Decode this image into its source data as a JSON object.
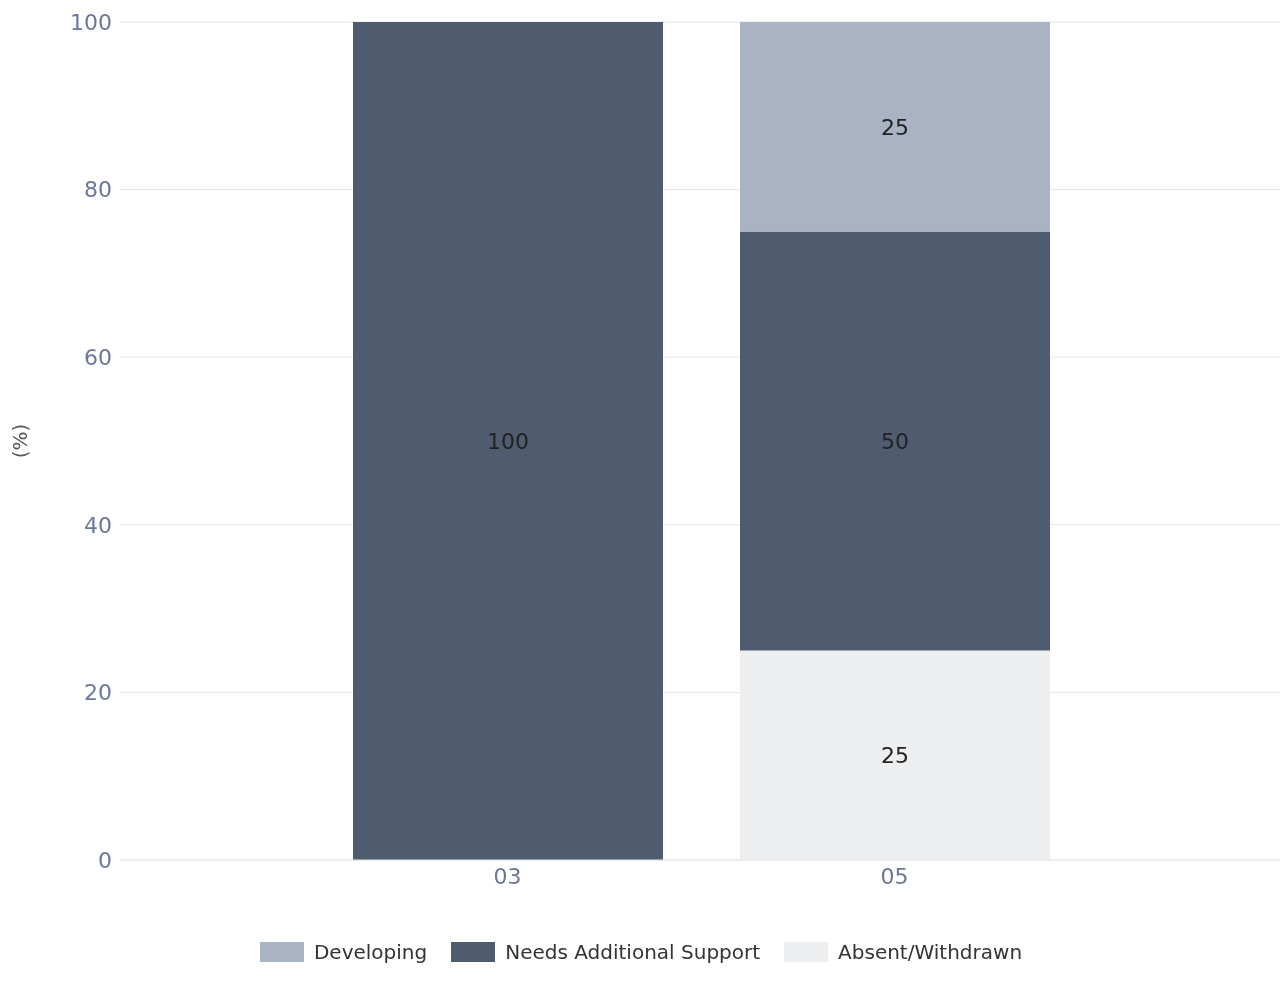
{
  "chart_data": {
    "type": "bar",
    "stacked": true,
    "ylabel": "(%)",
    "categories": [
      "03",
      "05"
    ],
    "series": [
      {
        "name": "Absent/Withdrawn",
        "color": "#eceef0",
        "values": [
          null,
          25
        ]
      },
      {
        "name": "Needs Additional Support",
        "color": "#4f5b6e",
        "values": [
          100,
          50
        ]
      },
      {
        "name": "Developing",
        "color": "#a9b3c4",
        "values": [
          null,
          25
        ]
      }
    ],
    "ylim": [
      0,
      100
    ],
    "yticks": [
      0,
      20,
      40,
      60,
      80,
      100
    ],
    "grid": "y",
    "legend": "bottom",
    "data_labels": true
  }
}
